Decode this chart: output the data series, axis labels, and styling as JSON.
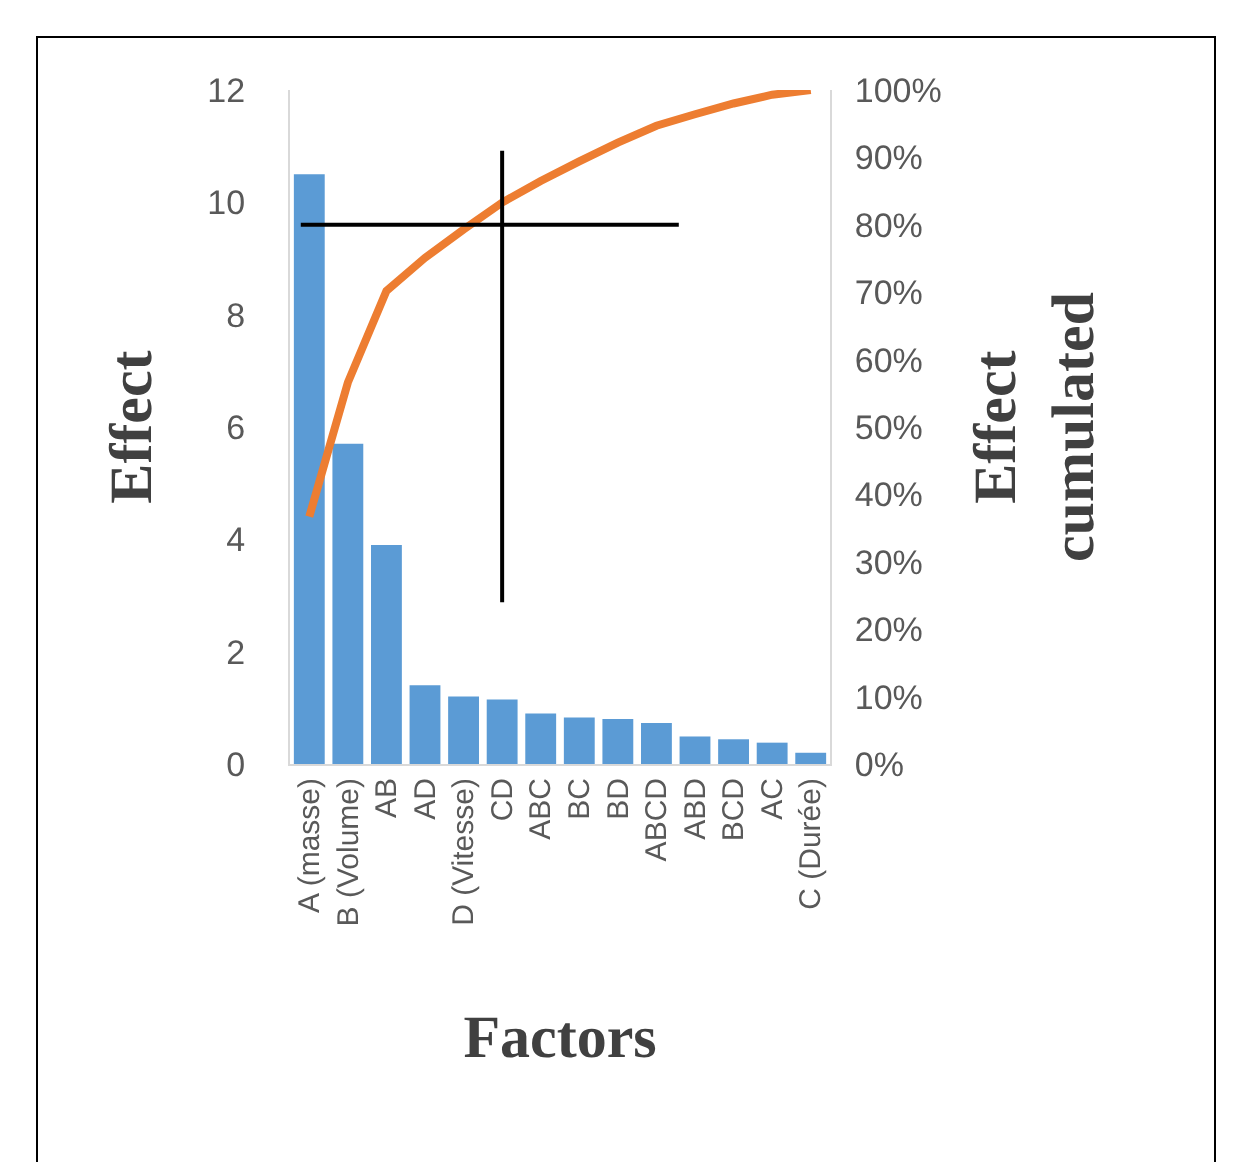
{
  "chart_data": {
    "type": "bar",
    "xlabel": "Factors",
    "ylabel": "Effect",
    "y2label": "Effect cumulated",
    "categories": [
      "A (masse)",
      "B (Volume)",
      "AB",
      "AD",
      "D (Vitesse)",
      "CD",
      "ABC",
      "BC",
      "BD",
      "ABCD",
      "ABD",
      "BCD",
      "AC",
      "C (Durée)"
    ],
    "series": [
      {
        "color": "#5b9bd5",
        "values": [
          10.5,
          5.7,
          3.9,
          1.4,
          1.2,
          1.15,
          0.9,
          0.83,
          0.8,
          0.73,
          0.49,
          0.44,
          0.38,
          0.2
        ]
      },
      {
        "type": "line",
        "axis": "y2",
        "color": "#ed7d31",
        "values": [
          36.7,
          56.6,
          70.2,
          75.1,
          79.3,
          83.3,
          86.5,
          89.4,
          92.2,
          94.7,
          96.4,
          98.0,
          99.3,
          100
        ]
      }
    ],
    "ylim": [
      0,
      12
    ],
    "yticks": [
      0,
      2,
      4,
      6,
      8,
      10,
      12
    ],
    "y2lim": [
      0,
      100
    ],
    "y2ticks": [
      {
        "value": 0,
        "label": "0%"
      },
      {
        "value": 10,
        "label": "10%"
      },
      {
        "value": 20,
        "label": "20%"
      },
      {
        "value": 30,
        "label": "30%"
      },
      {
        "value": 40,
        "label": "40%"
      },
      {
        "value": 50,
        "label": "50%"
      },
      {
        "value": 60,
        "label": "60%"
      },
      {
        "value": 70,
        "label": "70%"
      },
      {
        "value": 80,
        "label": "80%"
      },
      {
        "value": 90,
        "label": "90%"
      },
      {
        "value": 100,
        "label": "100%"
      }
    ],
    "ref_lines": [
      {
        "axis": "y2",
        "value": 80,
        "color": "#000000"
      },
      {
        "axis": "x",
        "value": "CD",
        "color": "#000000"
      }
    ],
    "grid": false,
    "marker": "none",
    "line_style": "solid"
  }
}
